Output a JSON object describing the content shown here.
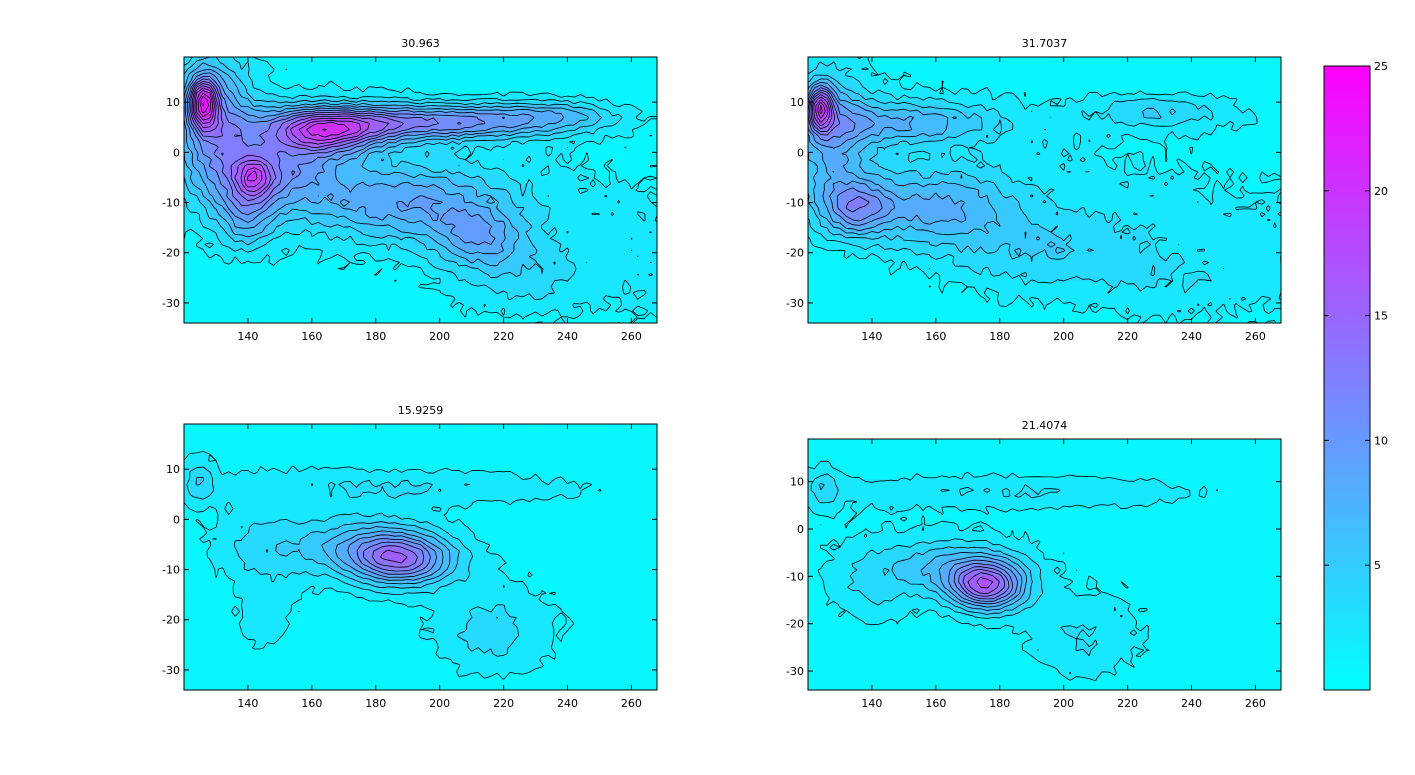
{
  "chart_data": [
    {
      "type": "contour",
      "title": "30.963",
      "xlim": [
        120,
        268
      ],
      "ylim": [
        -34,
        19
      ],
      "xticks": [
        140,
        160,
        180,
        200,
        220,
        240,
        260
      ],
      "yticks": [
        -30,
        -20,
        -10,
        0,
        10
      ],
      "blobs": [
        {
          "x": 126,
          "y": 10,
          "sx": 3,
          "sy": 3.5,
          "a": 16
        },
        {
          "x": 130,
          "y": 5,
          "sx": 8,
          "sy": 10,
          "a": 8
        },
        {
          "x": 165,
          "y": 4,
          "sx": 12,
          "sy": 3,
          "a": 12
        },
        {
          "x": 195,
          "y": 6,
          "sx": 30,
          "sy": 2.5,
          "a": 11
        },
        {
          "x": 235,
          "y": 7.5,
          "sx": 14,
          "sy": 2,
          "a": 4
        },
        {
          "x": 142,
          "y": -5,
          "sx": 4,
          "sy": 2.5,
          "a": 8
        },
        {
          "x": 140,
          "y": -12,
          "sx": 6,
          "sy": 5,
          "a": 6
        },
        {
          "x": 150,
          "y": -3,
          "sx": 14,
          "sy": 6,
          "a": 8
        },
        {
          "x": 190,
          "y": -10,
          "sx": 20,
          "sy": 5,
          "a": 7
        },
        {
          "x": 212,
          "y": -17,
          "sx": 10,
          "sy": 4,
          "a": 6
        },
        {
          "x": 225,
          "y": -25,
          "sx": 14,
          "sy": 5,
          "a": 2.5
        }
      ],
      "base": 2,
      "noise": 1.2,
      "seed": 11
    },
    {
      "type": "contour",
      "title": "31.7037",
      "xlim": [
        120,
        268
      ],
      "ylim": [
        -34,
        19
      ],
      "xticks": [
        140,
        160,
        180,
        200,
        220,
        240,
        260
      ],
      "yticks": [
        -30,
        -20,
        -10,
        0,
        10
      ],
      "blobs": [
        {
          "x": 124,
          "y": 9,
          "sx": 2.5,
          "sy": 3,
          "a": 14
        },
        {
          "x": 128,
          "y": 3,
          "sx": 8,
          "sy": 9,
          "a": 6
        },
        {
          "x": 150,
          "y": 6,
          "sx": 20,
          "sy": 3,
          "a": 6
        },
        {
          "x": 230,
          "y": 8,
          "sx": 18,
          "sy": 2.5,
          "a": 4
        },
        {
          "x": 135,
          "y": -11,
          "sx": 8,
          "sy": 4,
          "a": 8
        },
        {
          "x": 160,
          "y": -11,
          "sx": 16,
          "sy": 5,
          "a": 6
        },
        {
          "x": 190,
          "y": -20,
          "sx": 22,
          "sy": 6,
          "a": 3
        },
        {
          "x": 230,
          "y": -26,
          "sx": 16,
          "sy": 5,
          "a": 1.5
        }
      ],
      "base": 2,
      "noise": 1.2,
      "seed": 23
    },
    {
      "type": "contour",
      "title": "15.9259",
      "xlim": [
        120,
        268
      ],
      "ylim": [
        -34,
        19
      ],
      "xticks": [
        140,
        160,
        180,
        200,
        220,
        240,
        260
      ],
      "yticks": [
        -30,
        -20,
        -10,
        0,
        10
      ],
      "blobs": [
        {
          "x": 125,
          "y": 8,
          "sx": 3,
          "sy": 3,
          "a": 3
        },
        {
          "x": 190,
          "y": 6.5,
          "sx": 45,
          "sy": 2.5,
          "a": 2.5
        },
        {
          "x": 188,
          "y": -8,
          "sx": 11,
          "sy": 3.5,
          "a": 12
        },
        {
          "x": 175,
          "y": -5,
          "sx": 14,
          "sy": 4,
          "a": 5
        },
        {
          "x": 145,
          "y": -6,
          "sx": 10,
          "sy": 5,
          "a": 3
        },
        {
          "x": 145,
          "y": -20,
          "sx": 7,
          "sy": 5,
          "a": 2
        },
        {
          "x": 215,
          "y": -23,
          "sx": 12,
          "sy": 6,
          "a": 3
        }
      ],
      "base": 1,
      "noise": 0.8,
      "seed": 37
    },
    {
      "type": "contour",
      "title": "21.4074",
      "xlim": [
        120,
        268
      ],
      "ylim": [
        -34,
        19
      ],
      "xticks": [
        140,
        160,
        180,
        200,
        220,
        240,
        260
      ],
      "yticks": [
        -30,
        -20,
        -10,
        0,
        10
      ],
      "blobs": [
        {
          "x": 125,
          "y": 9,
          "sx": 3,
          "sy": 3,
          "a": 3
        },
        {
          "x": 190,
          "y": 8,
          "sx": 45,
          "sy": 2.5,
          "a": 2.5
        },
        {
          "x": 176,
          "y": -12,
          "sx": 8,
          "sy": 3.5,
          "a": 14
        },
        {
          "x": 165,
          "y": -8,
          "sx": 14,
          "sy": 4,
          "a": 5
        },
        {
          "x": 140,
          "y": -12,
          "sx": 10,
          "sy": 6,
          "a": 2.5
        },
        {
          "x": 205,
          "y": -24,
          "sx": 12,
          "sy": 6,
          "a": 2.5
        }
      ],
      "base": 1,
      "noise": 0.8,
      "seed": 53
    }
  ],
  "colorbar": {
    "min": 0,
    "max": 25,
    "ticks": [
      5,
      10,
      15,
      20,
      25
    ],
    "colormap": "cool",
    "color_low": "#00ffff",
    "color_high": "#ff00ff"
  },
  "contour_levels": [
    1.5,
    3,
    4.5,
    6,
    7.5,
    9,
    10.5,
    12,
    13.5,
    15,
    16.5,
    18,
    19.5,
    21,
    22.5,
    24
  ]
}
